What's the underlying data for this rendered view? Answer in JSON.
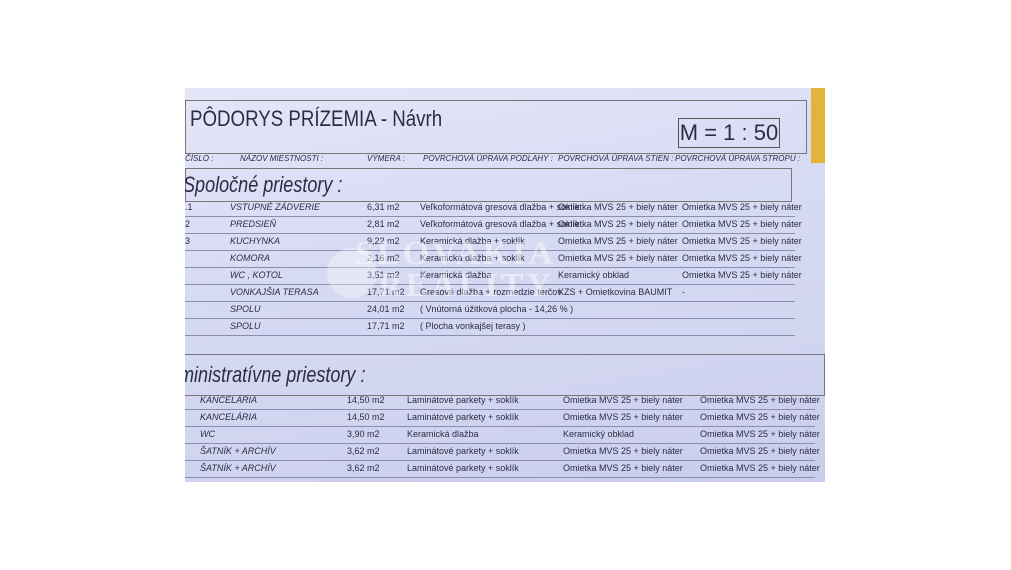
{
  "title": "PÔDORYS  PRÍZEMIA - Návrh",
  "scale": "M = 1 : 50",
  "headers": {
    "number": "ČÍSLO :",
    "room": "NÁZOV MIESTNOSTI :",
    "area": "VÝMERA :",
    "floor": "POVRCHOVÁ ÚPRAVA PODLAHY :",
    "walls": "POVRCHOVÁ ÚPRAVA STIEN :",
    "ceiling": "POVRCHOVÁ ÚPRAVA STROPU :"
  },
  "section1": {
    "title": "Spoločné priestory :",
    "rows": [
      {
        "num": ".1",
        "room": "VSTUPNÉ ZÁDVERIE",
        "area": "6,31 m2",
        "floor": "Veľkoformátová gresová dlažba + soklík",
        "walls": "Omietka MVS 25 + biely náter",
        "ceiling": "Omietka MVS 25 + biely náter"
      },
      {
        "num": "2",
        "room": "PREDSIEŇ",
        "area": "2,81 m2",
        "floor": "Veľkoformátová gresová dlažba + soklík",
        "walls": "Omietka MVS 25 + biely náter",
        "ceiling": "Omietka MVS 25 + biely náter"
      },
      {
        "num": "3",
        "room": "KUCHYNKA",
        "area": "9,22 m2",
        "floor": "Keramická dlažba + soklík",
        "walls": "Omietka MVS 25 + biely náter",
        "ceiling": "Omietka MVS 25 + biely náter"
      },
      {
        "num": "",
        "room": "KOMORA",
        "area": "2,16 m2",
        "floor": "Keramická dlažba + soklík",
        "walls": "Omietka MVS 25 + biely náter",
        "ceiling": "Omietka MVS 25 + biely náter"
      },
      {
        "num": "",
        "room": "WC , KOTOL",
        "area": "3,51 m2",
        "floor": "Keramická dlažba",
        "walls": "Keramický obklad",
        "ceiling": "Omietka MVS 25 + biely náter"
      },
      {
        "num": "",
        "room": "VONKAJŠIA TERASA",
        "area": "17,71 m2",
        "floor": "Gresová dlažba + rozmedzie terčov",
        "walls": "KZS + Omietkovina BAUMIT",
        "ceiling": "-"
      },
      {
        "num": "",
        "room": "SPOLU",
        "area": "24,01 m2",
        "floor": "( Vnútorná úžitková plocha - 14,26 % )",
        "walls": "",
        "ceiling": ""
      },
      {
        "num": "",
        "room": "SPOLU",
        "area": "17,71 m2",
        "floor": "( Plocha vonkajšej terasy )",
        "walls": "",
        "ceiling": ""
      }
    ]
  },
  "section2": {
    "title": "ministratívne priestory :",
    "rows": [
      {
        "room": "KANCELÁRIA",
        "area": "14,50 m2",
        "floor": "Laminátové parkety + soklík",
        "walls": "Omietka MVS 25 + biely náter",
        "ceiling": "Omietka MVS 25 + biely náter"
      },
      {
        "room": "KANCELÁRIA",
        "area": "14,50 m2",
        "floor": "Laminátové parkety + soklík",
        "walls": "Omietka MVS 25 + biely náter",
        "ceiling": "Omietka MVS 25 + biely náter"
      },
      {
        "room": "WC",
        "area": "3,90 m2",
        "floor": "Keramická dlažba",
        "walls": "Keramický obklad",
        "ceiling": "Omietka MVS 25 + biely náter"
      },
      {
        "room": "ŠATNÍK + ARCHÍV",
        "area": "3,62 m2",
        "floor": "Laminátové parkety + soklík",
        "walls": "Omietka MVS 25 + biely náter",
        "ceiling": "Omietka MVS 25 + biely náter"
      },
      {
        "room": "ŠATNÍK + ARCHÍV",
        "area": "3,62 m2",
        "floor": "Laminátové parkety + soklík",
        "walls": "Omietka MVS 25 + biely náter",
        "ceiling": "Omietka MVS 25 + biely náter"
      }
    ]
  },
  "watermark": "SLOVAKIA REALITY",
  "colors": {
    "paper": "#d7daf3",
    "ink": "#2a2d45",
    "tape": "#e3b43a"
  }
}
